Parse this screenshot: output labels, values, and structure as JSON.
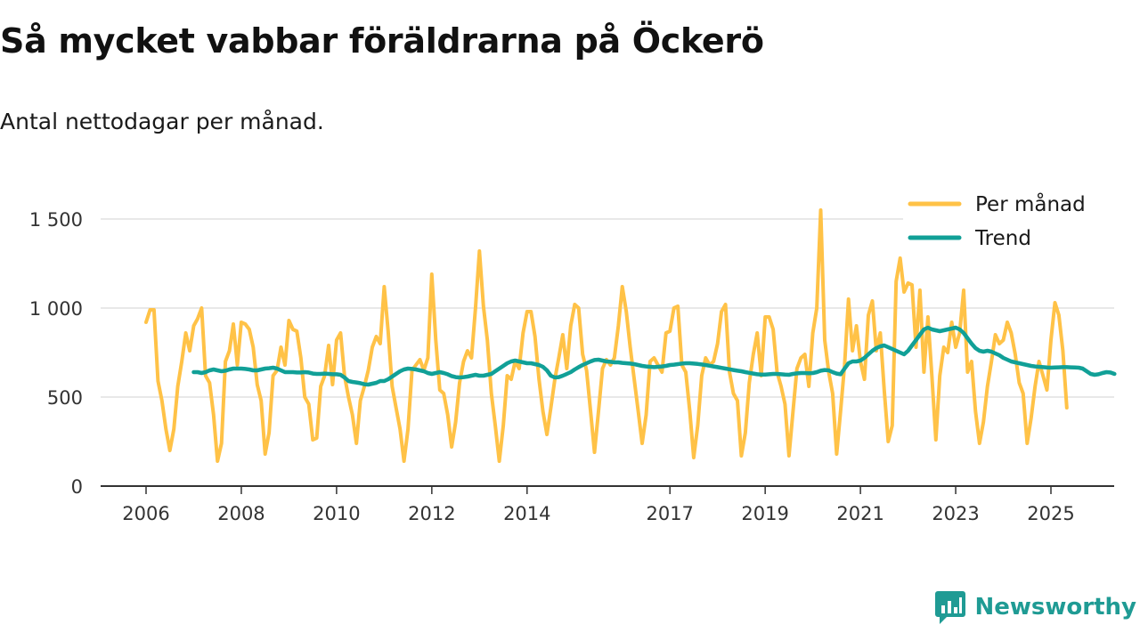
{
  "header": {
    "title": "Så mycket vabbar föräldrarna på Öckerö",
    "subtitle": "Antal nettodagar per månad."
  },
  "brand": {
    "name": "Newsworthy",
    "logo_icon": "newsworthy-logo-icon"
  },
  "chart_data": {
    "type": "line",
    "title": "Så mycket vabbar föräldrarna på Öckerö",
    "subtitle": "Antal nettodagar per månad.",
    "xlabel": "",
    "ylabel": "",
    "x_start": 2006.0,
    "x_step": 0.0833333,
    "xlim": [
      2006.0,
      2025.5
    ],
    "ylim": [
      0,
      1500
    ],
    "yticks": [
      0,
      500,
      1000,
      1500
    ],
    "ytick_labels": [
      "0",
      "500",
      "1 000",
      "1 500"
    ],
    "xticks": [
      2006,
      2008,
      2010,
      2012,
      2014,
      2017,
      2019,
      2021,
      2023,
      2025
    ],
    "xtick_labels": [
      "2006",
      "2008",
      "2010",
      "2012",
      "2014",
      "2017",
      "2019",
      "2021",
      "2023",
      "2025"
    ],
    "grid": true,
    "legend_position": "top-right",
    "colors": {
      "monthly": "#ffc247",
      "trend": "#11a097",
      "grid": "#d9d9d9",
      "axis": "#333333"
    },
    "series": [
      {
        "name": "Per månad",
        "values": [
          920,
          990,
          990,
          590,
          480,
          320,
          200,
          320,
          560,
          700,
          860,
          760,
          900,
          940,
          1000,
          620,
          580,
          400,
          140,
          240,
          700,
          760,
          910,
          680,
          920,
          910,
          880,
          780,
          570,
          480,
          180,
          300,
          620,
          650,
          780,
          680,
          930,
          880,
          870,
          720,
          500,
          460,
          260,
          270,
          560,
          620,
          790,
          570,
          820,
          860,
          620,
          500,
          400,
          240,
          480,
          560,
          650,
          780,
          840,
          800,
          1120,
          870,
          560,
          440,
          320,
          140,
          320,
          650,
          680,
          710,
          650,
          720,
          1190,
          820,
          540,
          520,
          400,
          220,
          360,
          580,
          700,
          760,
          720,
          1000,
          1320,
          1010,
          820,
          520,
          340,
          140,
          340,
          620,
          600,
          700,
          660,
          860,
          980,
          980,
          840,
          600,
          420,
          290,
          440,
          600,
          720,
          850,
          660,
          900,
          1020,
          1000,
          740,
          650,
          420,
          190,
          420,
          660,
          710,
          680,
          720,
          900,
          1120,
          980,
          780,
          600,
          420,
          240,
          400,
          700,
          720,
          680,
          640,
          860,
          870,
          1000,
          1010,
          680,
          640,
          420,
          160,
          340,
          620,
          720,
          680,
          700,
          800,
          980,
          1020,
          640,
          520,
          480,
          170,
          300,
          580,
          740,
          860,
          620,
          950,
          950,
          880,
          640,
          560,
          460,
          170,
          420,
          660,
          720,
          740,
          560,
          860,
          1000,
          1550,
          820,
          640,
          520,
          180,
          420,
          680,
          1050,
          760,
          900,
          700,
          600,
          960,
          1040,
          760,
          860,
          540,
          250,
          340,
          1150,
          1280,
          1090,
          1140,
          1130,
          780,
          1100,
          640,
          950,
          620,
          260,
          620,
          780,
          750,
          920,
          780,
          860,
          1100,
          640,
          700,
          420,
          240,
          360,
          560,
          700,
          850,
          800,
          820,
          920,
          860,
          740,
          580,
          520,
          240,
          380,
          560,
          700,
          620,
          540,
          820,
          1030,
          960,
          760,
          440
        ]
      },
      {
        "name": "Trend",
        "start_offset": 12,
        "values": [
          640,
          640,
          635,
          640,
          650,
          655,
          650,
          645,
          648,
          655,
          660,
          660,
          660,
          658,
          655,
          650,
          650,
          655,
          660,
          662,
          665,
          660,
          650,
          640,
          640,
          640,
          638,
          638,
          640,
          638,
          632,
          630,
          630,
          632,
          630,
          628,
          628,
          625,
          610,
          590,
          585,
          582,
          578,
          572,
          570,
          575,
          580,
          590,
          590,
          600,
          615,
          630,
          645,
          655,
          660,
          658,
          655,
          650,
          645,
          635,
          630,
          635,
          640,
          635,
          628,
          618,
          612,
          610,
          612,
          615,
          620,
          625,
          620,
          620,
          625,
          630,
          645,
          660,
          675,
          690,
          700,
          705,
          700,
          695,
          690,
          690,
          685,
          680,
          670,
          650,
          620,
          610,
          612,
          620,
          630,
          640,
          655,
          668,
          680,
          690,
          700,
          708,
          710,
          705,
          700,
          698,
          695,
          695,
          692,
          690,
          688,
          685,
          680,
          675,
          672,
          670,
          668,
          670,
          672,
          675,
          680,
          682,
          685,
          688,
          690,
          690,
          688,
          686,
          683,
          680,
          676,
          672,
          668,
          664,
          660,
          656,
          652,
          648,
          645,
          640,
          636,
          632,
          628,
          626,
          626,
          628,
          630,
          630,
          628,
          626,
          625,
          630,
          633,
          635,
          635,
          634,
          635,
          640,
          648,
          652,
          650,
          640,
          632,
          628,
          660,
          690,
          700,
          700,
          705,
          720,
          740,
          760,
          775,
          785,
          790,
          780,
          770,
          760,
          750,
          740,
          760,
          790,
          820,
          850,
          880,
          890,
          880,
          875,
          870,
          875,
          880,
          885,
          890,
          880,
          860,
          830,
          800,
          775,
          760,
          755,
          760,
          755,
          745,
          735,
          720,
          710,
          700,
          695,
          690,
          685,
          680,
          675,
          672,
          670,
          668,
          666,
          665,
          666,
          667,
          668,
          668,
          667,
          666,
          665,
          660,
          645,
          630,
          625,
          628,
          635,
          640,
          638,
          630
        ]
      }
    ]
  }
}
